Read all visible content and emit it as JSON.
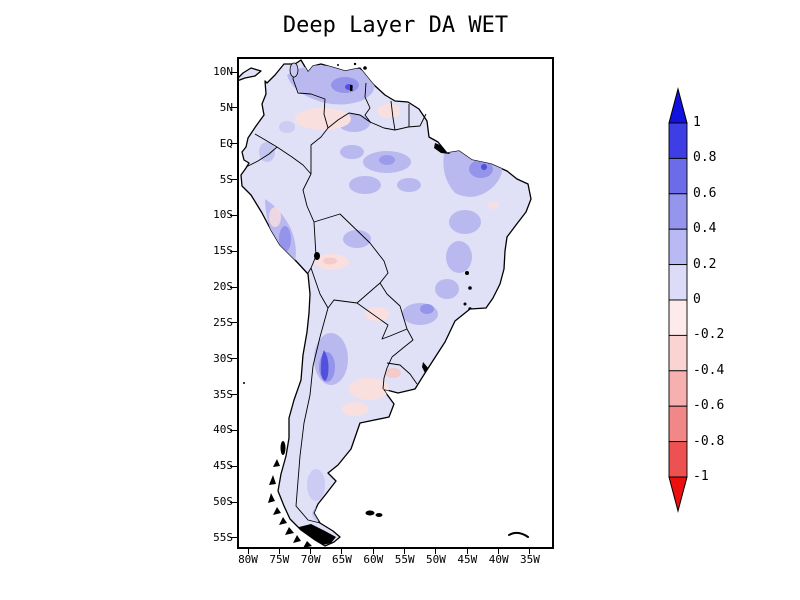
{
  "title": "Deep Layer DA WET",
  "axes": {
    "lat_tick_labels": [
      "10N",
      "5N",
      "EQ",
      "5S",
      "10S",
      "15S",
      "20S",
      "25S",
      "30S",
      "35S",
      "40S",
      "45S",
      "50S",
      "55S"
    ],
    "lon_tick_labels": [
      "80W",
      "75W",
      "70W",
      "65W",
      "60W",
      "55W",
      "50W",
      "45W",
      "40W",
      "35W"
    ]
  },
  "colorbar": {
    "tick_labels": [
      "1",
      "0.8",
      "0.6",
      "0.4",
      "0.2",
      "0",
      "-0.2",
      "-0.4",
      "-0.6",
      "-0.8",
      "-1"
    ],
    "segment_colors": [
      "#3e3ee5",
      "#6c6ce9",
      "#9595ee",
      "#b9b9f3",
      "#dcdcf8",
      "#fdebeb",
      "#fad3d3",
      "#f6b0b0",
      "#f28787",
      "#ee5151"
    ],
    "arrow_top_color": "#1212e0",
    "arrow_bottom_color": "#ec0f0f"
  },
  "map_colors": {
    "land_base": "#e0e0f6",
    "shade_02_04": "#b9b9f0",
    "shade_04_06": "#9494ea",
    "shade_06_08": "#5151dd",
    "shade_neg_0_02": "#fadfdf",
    "shade_neg_02_04": "#f6caca",
    "outline": "#000000",
    "background": "#ffffff"
  },
  "chart_data": {
    "type": "heatmap",
    "subtype": "GrADS-style filled contour (shaded) map with coastlines and country borders",
    "title": "Deep Layer DA WET",
    "region": "South America",
    "x_axis": {
      "label": "longitude",
      "ticks": [
        "80W",
        "75W",
        "70W",
        "65W",
        "60W",
        "55W",
        "50W",
        "45W",
        "40W",
        "35W"
      ]
    },
    "y_axis": {
      "label": "latitude",
      "ticks": [
        "10N",
        "5N",
        "EQ",
        "5S",
        "10S",
        "15S",
        "20S",
        "25S",
        "30S",
        "35S",
        "40S",
        "45S",
        "50S",
        "55S"
      ]
    },
    "legend": {
      "position": "vertical colorbar at right with pointed arrow ends",
      "levels": [
        1,
        0.8,
        0.6,
        0.4,
        0.2,
        0,
        -0.2,
        -0.4,
        -0.6,
        -0.8,
        -1
      ],
      "colors_top_to_bottom": [
        "#1212e0",
        "#3e3ee5",
        "#6c6ce9",
        "#9595ee",
        "#b9b9f3",
        "#dcdcf8",
        "#fdebeb",
        "#fad3d3",
        "#f6b0b0",
        "#f28787",
        "#ee5151",
        "#ec0f0f"
      ]
    },
    "grid": false,
    "pattern": "Land shaded mostly 0 to 0.2 (pale lavender); 0.2-0.4 patches over Venezuela, the Guianas, northeast Brazil, the central Amazon, the Peruvian Andes and southern Brazil; stronger 0.4-0.8 spots over Venezuela, northeast Brazil and northwest Argentina; weak negative (0 to -0.4) pink patches over the Llanos, eastern Venezuela, the Bolivian Altiplano, Paraguay and the Pampas/Uruguay; ocean unshaded (white)."
  }
}
